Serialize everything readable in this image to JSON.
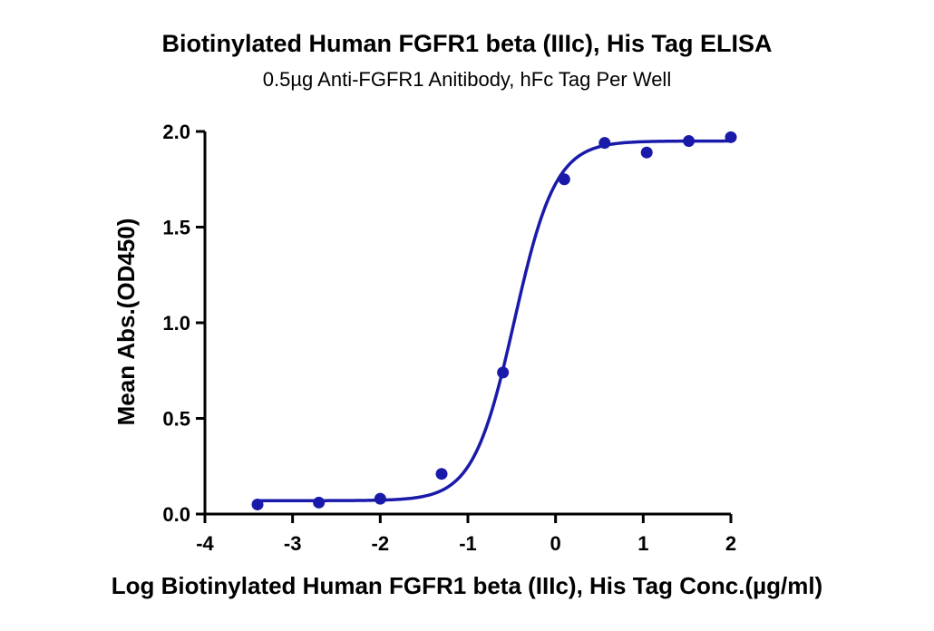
{
  "chart_data": {
    "type": "scatter",
    "title": "Biotinylated Human FGFR1 beta (IIIc), His Tag ELISA",
    "subtitle": "0.5µg Anti-FGFR1 Anitibody, hFc Tag Per Well",
    "xlabel": "Log Biotinylated Human FGFR1 beta (IIIc), His Tag Conc.(µg/ml)",
    "ylabel": "Mean Abs.(OD450)",
    "xlim": [
      -4,
      2
    ],
    "ylim": [
      0,
      2.0
    ],
    "x_ticks": [
      -4,
      -3,
      -2,
      -1,
      0,
      1,
      2
    ],
    "x_tick_labels": [
      "-4",
      "-3",
      "-2",
      "-1",
      "0",
      "1",
      "2"
    ],
    "y_ticks": [
      0,
      0.5,
      1.0,
      1.5,
      2.0
    ],
    "y_tick_labels": [
      "0.0",
      "0.5",
      "1.0",
      "1.5",
      "2.0"
    ],
    "grid": false,
    "color": "#1a1aaa",
    "series": [
      {
        "x": [
          -3.4,
          -2.7,
          -2.0,
          -1.3,
          -0.6,
          0.1,
          0.56,
          1.04,
          1.52,
          2.0
        ],
        "y": [
          0.05,
          0.06,
          0.08,
          0.21,
          0.74,
          1.75,
          1.94,
          1.89,
          1.95,
          1.97
        ],
        "fit": {
          "model": "4PL",
          "bottom": 0.07,
          "top": 1.95,
          "log_ec50": -0.47,
          "hill": 1.85
        }
      }
    ]
  }
}
